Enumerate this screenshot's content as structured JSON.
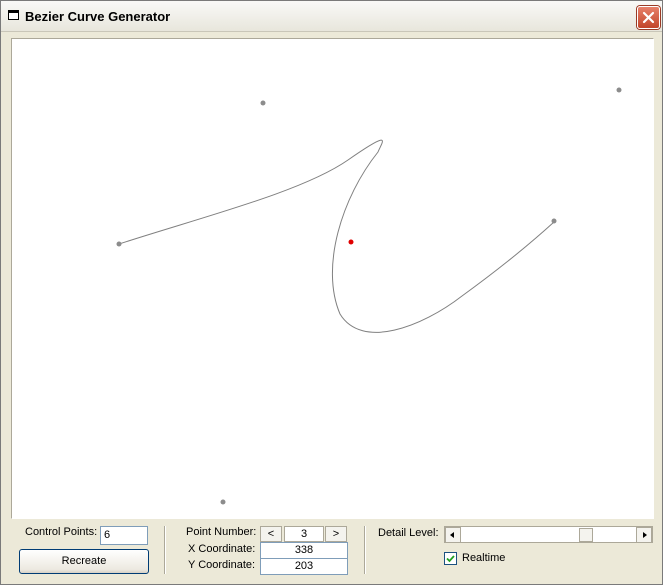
{
  "window": {
    "title": "Bezier Curve Generator"
  },
  "icons": {
    "app": "window-icon",
    "close": "close-icon"
  },
  "colors": {
    "curve": "#808080",
    "control_point": "#8c8c8c",
    "selected_point": "#e00000"
  },
  "controls": {
    "control_points_label": "Control Points:",
    "control_points_value": "6",
    "recreate_label": "Recreate",
    "point_number_label": "Point Number:",
    "prev_label": "<",
    "point_number_value": "3",
    "next_label": ">",
    "x_label": "X Coordinate:",
    "x_value": "338",
    "y_label": "Y Coordinate:",
    "y_value": "203",
    "detail_label": "Detail Level:",
    "detail_level_fraction": 0.735,
    "realtime_label": "Realtime",
    "realtime_checked": true
  }
}
